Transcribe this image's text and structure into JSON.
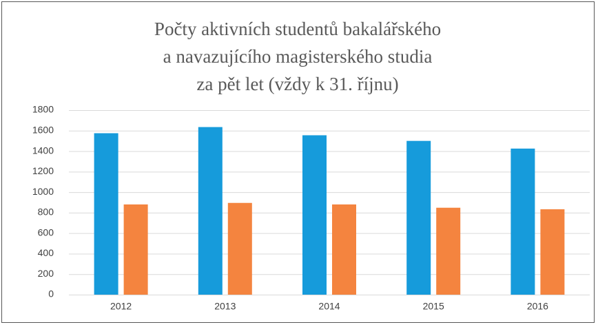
{
  "chart_data": {
    "type": "bar",
    "title": [
      "Počty aktivních studentů bakalářského",
      "a navazujícího magisterského studia",
      "za pět let (vždy k 31. říjnu)"
    ],
    "categories": [
      "2012",
      "2013",
      "2014",
      "2015",
      "2016"
    ],
    "series": [
      {
        "color": "#169bdb",
        "values": [
          1575,
          1635,
          1555,
          1500,
          1425
        ]
      },
      {
        "color": "#f4843f",
        "values": [
          880,
          895,
          880,
          848,
          833
        ]
      }
    ],
    "ylim": [
      0,
      1800
    ],
    "yticks": [
      0,
      200,
      400,
      600,
      800,
      1000,
      1200,
      1400,
      1600,
      1800
    ],
    "grid": true
  }
}
